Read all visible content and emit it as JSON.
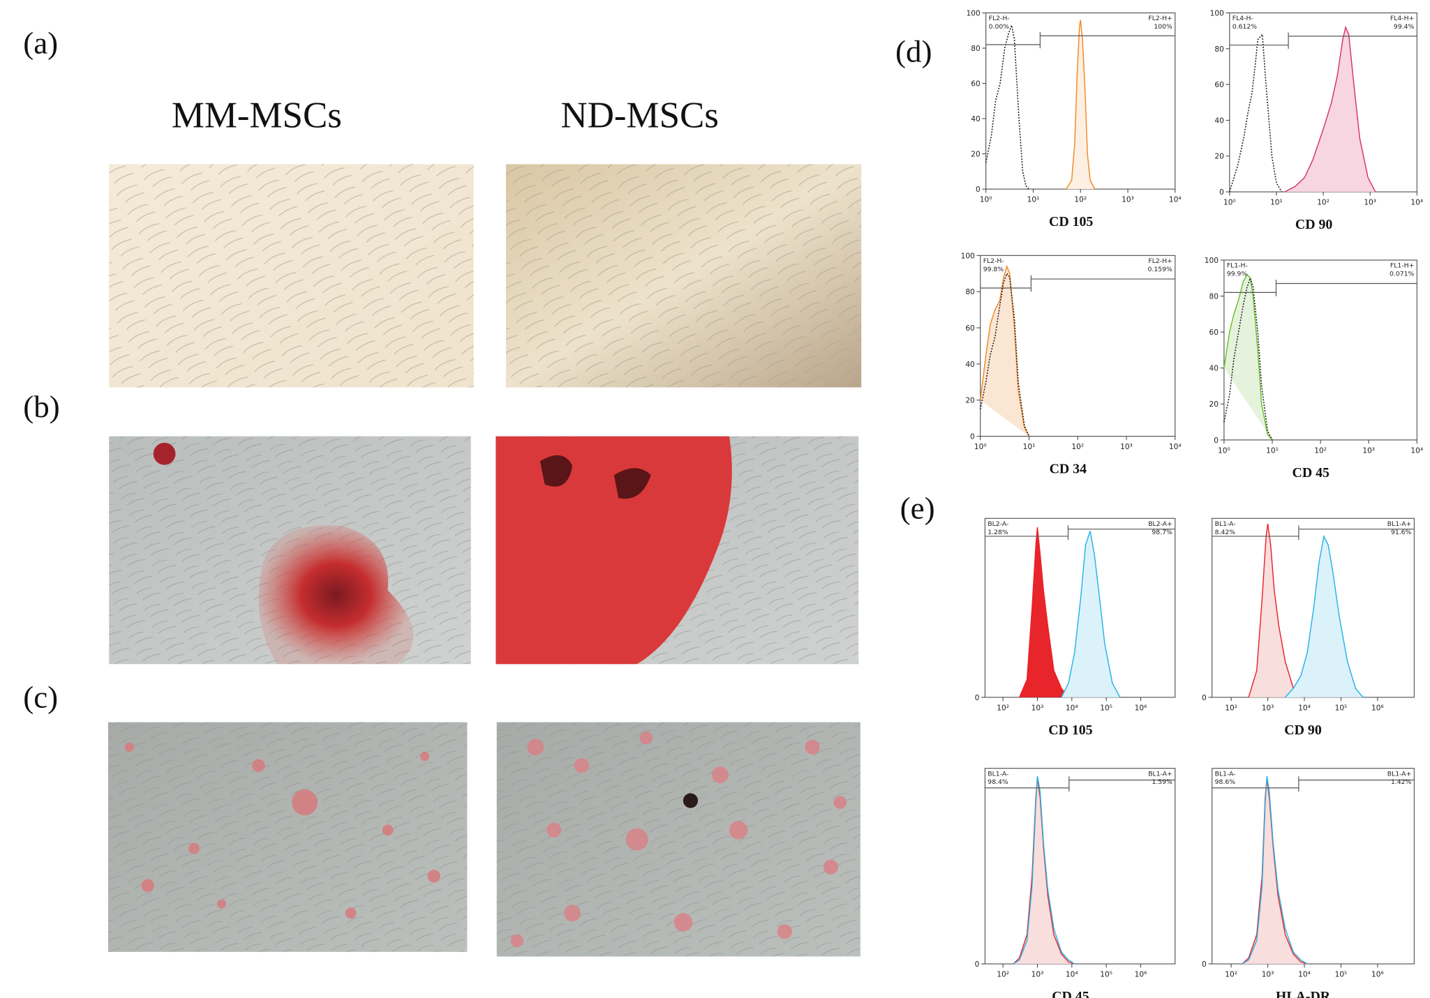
{
  "panel_labels": {
    "a": "(a)",
    "b": "(b)",
    "c": "(c)",
    "d": "(d)",
    "e": "(e)"
  },
  "columns": [
    "MM-MSCs",
    "ND-MSCs"
  ],
  "chart_data": [
    {
      "type": "area",
      "xlabel": "CD 105",
      "xscale": "log",
      "xlim": [
        1,
        10000
      ],
      "xticks": [
        {
          "value": 1,
          "label": "10⁰"
        },
        {
          "value": 10,
          "label": "10¹"
        },
        {
          "value": 100,
          "label": "10²"
        },
        {
          "value": 1000,
          "label": "10³"
        },
        {
          "value": 10000,
          "label": "10⁴"
        }
      ],
      "ylim": [
        0,
        100
      ],
      "yticks": [
        0,
        20,
        40,
        60,
        80,
        100
      ],
      "gate": 14,
      "gate_labels": {
        "left_name": "FL2-H-",
        "left_pct": "0.00%",
        "right_name": "FL2-H+",
        "right_pct": "100%"
      },
      "series": [
        {
          "color": "#222222",
          "fill": "none",
          "style": "dotted",
          "x": [
            1,
            1.3,
            1.6,
            2,
            2.5,
            3,
            3.5,
            4,
            5,
            6,
            7,
            8
          ],
          "values": [
            15,
            30,
            50,
            60,
            80,
            88,
            93,
            85,
            40,
            10,
            2,
            0
          ]
        },
        {
          "color": "#f08a24",
          "fill": "#fdf0e3",
          "style": "solid",
          "x": [
            50,
            65,
            75,
            85,
            95,
            100,
            110,
            125,
            140,
            160,
            200
          ],
          "values": [
            0,
            5,
            25,
            65,
            92,
            96,
            85,
            55,
            20,
            5,
            0
          ]
        }
      ]
    },
    {
      "type": "area",
      "xlabel": "CD 90",
      "xscale": "log",
      "xlim": [
        1,
        10000
      ],
      "xticks": [
        {
          "value": 1,
          "label": "10⁰"
        },
        {
          "value": 10,
          "label": "10¹"
        },
        {
          "value": 100,
          "label": "10²"
        },
        {
          "value": 1000,
          "label": "10³"
        },
        {
          "value": 10000,
          "label": "10⁴"
        }
      ],
      "ylim": [
        0,
        100
      ],
      "yticks": [
        0,
        20,
        40,
        60,
        80,
        100
      ],
      "gate": 18,
      "gate_labels": {
        "left_name": "FL4-H-",
        "left_pct": "0.612%",
        "right_name": "FL4-H+",
        "right_pct": "99.4%"
      },
      "series": [
        {
          "color": "#222222",
          "fill": "none",
          "style": "dotted",
          "x": [
            1,
            1.5,
            2,
            2.5,
            3,
            3.5,
            4,
            5,
            6,
            8,
            10,
            13
          ],
          "values": [
            0,
            15,
            30,
            45,
            55,
            70,
            85,
            88,
            60,
            20,
            5,
            0
          ]
        },
        {
          "color": "#d6336c",
          "fill": "#f7d6e2",
          "style": "solid",
          "x": [
            15,
            25,
            40,
            60,
            100,
            150,
            200,
            260,
            300,
            350,
            450,
            600,
            900,
            1300
          ],
          "values": [
            0,
            3,
            8,
            18,
            35,
            50,
            65,
            85,
            92,
            88,
            60,
            30,
            8,
            0
          ]
        }
      ]
    },
    {
      "type": "area",
      "xlabel": "CD 34",
      "xscale": "log",
      "xlim": [
        1,
        10000
      ],
      "xticks": [
        {
          "value": 1,
          "label": "10⁰"
        },
        {
          "value": 10,
          "label": "10¹"
        },
        {
          "value": 100,
          "label": "10²"
        },
        {
          "value": 1000,
          "label": "10³"
        },
        {
          "value": 10000,
          "label": "10⁴"
        }
      ],
      "ylim": [
        0,
        100
      ],
      "yticks": [
        0,
        20,
        40,
        60,
        80,
        100
      ],
      "gate": 11,
      "gate_labels": {
        "left_name": "FL2-H-",
        "left_pct": "99.8%",
        "right_name": "FL2-H+",
        "right_pct": "0.159%"
      },
      "series": [
        {
          "color": "#f08a24",
          "fill": "#fbe6d3",
          "style": "solid",
          "x": [
            1,
            1.3,
            1.6,
            2,
            2.5,
            3,
            3.5,
            4,
            5,
            6,
            8,
            10
          ],
          "values": [
            20,
            45,
            62,
            70,
            75,
            88,
            94,
            90,
            60,
            25,
            5,
            0
          ]
        },
        {
          "color": "#222222",
          "fill": "none",
          "style": "dotted",
          "x": [
            1,
            1.3,
            1.6,
            2,
            2.5,
            3,
            3.5,
            4,
            5,
            6,
            8,
            10
          ],
          "values": [
            15,
            30,
            45,
            55,
            72,
            85,
            90,
            88,
            65,
            30,
            6,
            0
          ]
        }
      ]
    },
    {
      "type": "area",
      "xlabel": "CD 45",
      "xscale": "log",
      "xlim": [
        1,
        10000
      ],
      "xticks": [
        {
          "value": 1,
          "label": "10⁰"
        },
        {
          "value": 10,
          "label": "10¹"
        },
        {
          "value": 100,
          "label": "10²"
        },
        {
          "value": 1000,
          "label": "10³"
        },
        {
          "value": 10000,
          "label": "10⁴"
        }
      ],
      "ylim": [
        0,
        100
      ],
      "yticks": [
        0,
        20,
        40,
        60,
        80,
        100
      ],
      "gate": 12,
      "gate_labels": {
        "left_name": "FL1-H-",
        "left_pct": "99.9%",
        "right_name": "FL1-H+",
        "right_pct": "0.071%"
      },
      "series": [
        {
          "color": "#66c22b",
          "fill": "#e6f3dc",
          "style": "solid",
          "x": [
            1,
            1.3,
            1.6,
            2,
            2.5,
            3,
            3.5,
            4,
            5,
            6,
            8,
            10
          ],
          "values": [
            40,
            60,
            70,
            78,
            88,
            92,
            90,
            80,
            50,
            20,
            3,
            0
          ]
        },
        {
          "color": "#222222",
          "fill": "none",
          "style": "dotted",
          "x": [
            1,
            1.3,
            1.6,
            2,
            2.5,
            3,
            3.5,
            4,
            5,
            6,
            8,
            10
          ],
          "values": [
            10,
            25,
            45,
            60,
            75,
            85,
            90,
            85,
            60,
            30,
            5,
            0
          ]
        }
      ]
    },
    {
      "type": "area",
      "xlabel": "CD 105",
      "xscale": "log",
      "xlim": [
        30,
        10000000
      ],
      "xticks": [
        {
          "value": 100,
          "label": "10²"
        },
        {
          "value": 1000,
          "label": "10³"
        },
        {
          "value": 10000,
          "label": "10⁴"
        },
        {
          "value": 100000,
          "label": "10⁵"
        },
        {
          "value": 1000000,
          "label": "10⁶"
        }
      ],
      "ylim": [
        0,
        100
      ],
      "yticks": [
        0
      ],
      "gate": 7800,
      "gate_labels": {
        "left_name": "BL2-A-",
        "left_pct": "1.28%",
        "right_name": "BL2-A+",
        "right_pct": "98.7%"
      },
      "series": [
        {
          "color": "#e8252a",
          "fill": "#e8252a",
          "style": "solid",
          "x": [
            300,
            500,
            700,
            900,
            1000,
            1200,
            1500,
            2000,
            3000,
            5000,
            8000
          ],
          "values": [
            0,
            10,
            50,
            85,
            95,
            80,
            60,
            40,
            15,
            5,
            0
          ]
        },
        {
          "color": "#27b3e6",
          "fill": "#dcf2fa",
          "style": "solid",
          "x": [
            5000,
            8000,
            12000,
            18000,
            25000,
            34000,
            45000,
            60000,
            90000,
            150000,
            250000
          ],
          "values": [
            0,
            8,
            25,
            55,
            85,
            93,
            80,
            60,
            30,
            8,
            0
          ]
        }
      ]
    },
    {
      "type": "area",
      "xlabel": "CD 90",
      "xscale": "log",
      "xlim": [
        30,
        10000000
      ],
      "xticks": [
        {
          "value": 100,
          "label": "10²"
        },
        {
          "value": 1000,
          "label": "10³"
        },
        {
          "value": 10000,
          "label": "10⁴"
        },
        {
          "value": 100000,
          "label": "10⁵"
        },
        {
          "value": 1000000,
          "label": "10⁶"
        }
      ],
      "ylim": [
        0,
        100
      ],
      "yticks": [
        0
      ],
      "gate": 7000,
      "gate_labels": {
        "left_name": "BL1-A-",
        "left_pct": "8.42%",
        "right_name": "BL1-A+",
        "right_pct": "91.6%"
      },
      "series": [
        {
          "color": "#e8252a",
          "fill": "#f9dede",
          "style": "solid",
          "x": [
            300,
            500,
            700,
            900,
            1000,
            1200,
            1500,
            2000,
            3000,
            5000,
            8000
          ],
          "values": [
            0,
            15,
            55,
            90,
            97,
            85,
            60,
            40,
            20,
            5,
            0
          ]
        },
        {
          "color": "#27b3e6",
          "fill": "#dcf2fa",
          "style": "solid",
          "x": [
            3000,
            5000,
            8000,
            12000,
            18000,
            25000,
            34000,
            45000,
            60000,
            90000,
            150000,
            250000,
            400000
          ],
          "values": [
            0,
            5,
            12,
            25,
            50,
            75,
            90,
            85,
            70,
            45,
            20,
            5,
            0
          ]
        }
      ]
    },
    {
      "type": "area",
      "xlabel": "CD 45",
      "xscale": "log",
      "xlim": [
        30,
        10000000
      ],
      "xticks": [
        {
          "value": 100,
          "label": "10²"
        },
        {
          "value": 1000,
          "label": "10³"
        },
        {
          "value": 10000,
          "label": "10⁴"
        },
        {
          "value": 100000,
          "label": "10⁵"
        },
        {
          "value": 1000000,
          "label": "10⁶"
        }
      ],
      "ylim": [
        0,
        100
      ],
      "yticks": [
        0
      ],
      "gate": 8300,
      "gate_labels": {
        "left_name": "BL1-A-",
        "left_pct": "98.4%",
        "right_name": "BL1-A+",
        "right_pct": "1.59%"
      },
      "series": [
        {
          "color": "#e8252a",
          "fill": "#f9dede",
          "style": "solid",
          "x": [
            200,
            300,
            500,
            700,
            900,
            1000,
            1200,
            1500,
            2000,
            3000,
            5000,
            8000,
            12000
          ],
          "values": [
            0,
            3,
            15,
            45,
            85,
            95,
            85,
            60,
            35,
            15,
            5,
            1,
            0
          ]
        },
        {
          "color": "#27b3e6",
          "fill": "none",
          "style": "solid",
          "x": [
            200,
            300,
            500,
            700,
            900,
            1000,
            1200,
            1500,
            2000,
            3000,
            5000,
            8000,
            12000
          ],
          "values": [
            0,
            2,
            12,
            40,
            82,
            96,
            88,
            62,
            38,
            18,
            6,
            2,
            0
          ]
        }
      ]
    },
    {
      "type": "area",
      "xlabel": "HLA-DR",
      "xscale": "log",
      "xlim": [
        30,
        10000000
      ],
      "xticks": [
        {
          "value": 100,
          "label": "10²"
        },
        {
          "value": 1000,
          "label": "10³"
        },
        {
          "value": 10000,
          "label": "10⁴"
        },
        {
          "value": 100000,
          "label": "10⁵"
        },
        {
          "value": 1000000,
          "label": "10⁶"
        }
      ],
      "ylim": [
        0,
        100
      ],
      "yticks": [
        0
      ],
      "gate": 7000,
      "gate_labels": {
        "left_name": "BL1-A-",
        "left_pct": "98.6%",
        "right_name": "BL1-A+",
        "right_pct": "1.42%"
      },
      "series": [
        {
          "color": "#e8252a",
          "fill": "#f9dede",
          "style": "solid",
          "x": [
            200,
            300,
            500,
            700,
            850,
            950,
            1100,
            1400,
            1900,
            3000,
            5000,
            8000,
            12000
          ],
          "values": [
            0,
            3,
            15,
            45,
            85,
            95,
            85,
            60,
            35,
            15,
            5,
            1,
            0
          ]
        },
        {
          "color": "#27b3e6",
          "fill": "none",
          "style": "solid",
          "x": [
            200,
            300,
            500,
            700,
            850,
            950,
            1100,
            1400,
            1900,
            3000,
            5000,
            8000,
            12000
          ],
          "values": [
            0,
            2,
            12,
            40,
            82,
            96,
            88,
            62,
            38,
            18,
            6,
            2,
            0
          ]
        }
      ]
    }
  ]
}
